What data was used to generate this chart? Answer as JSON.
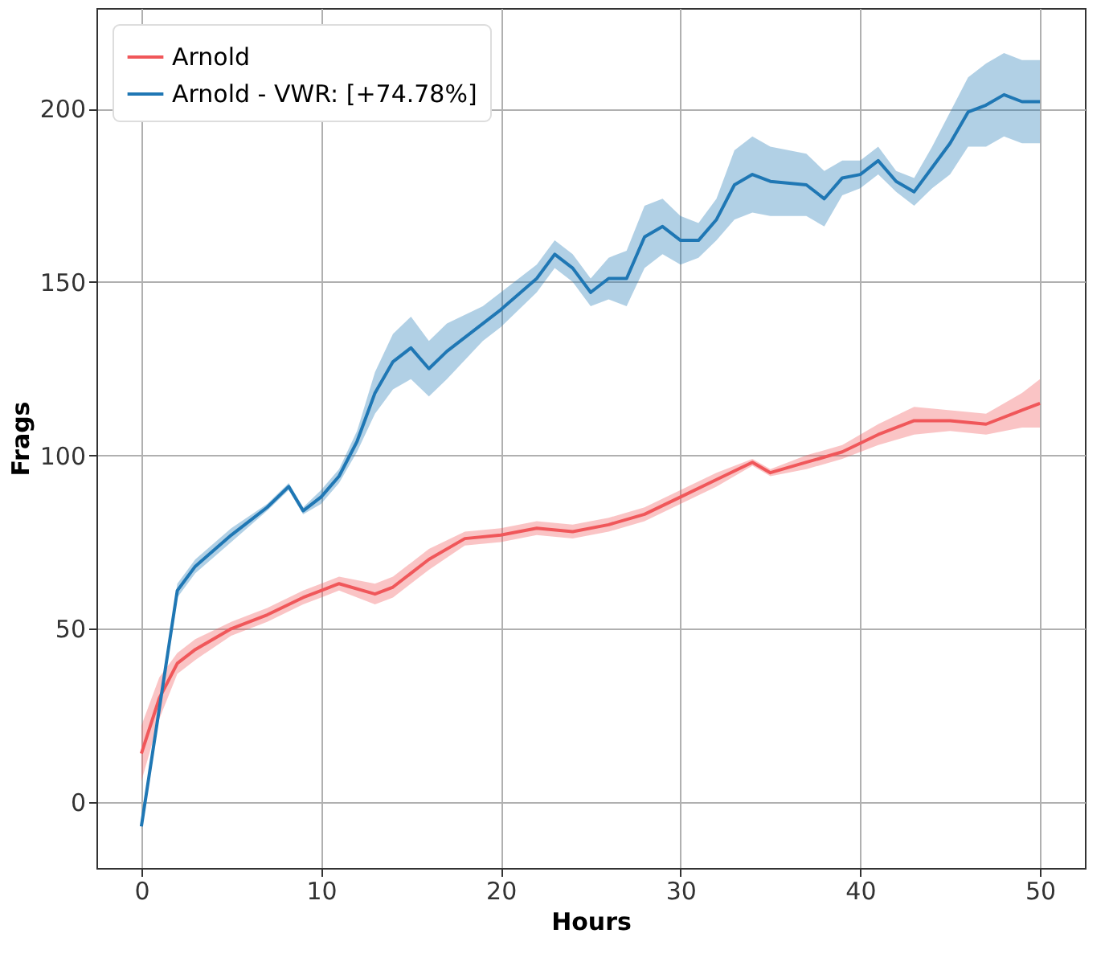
{
  "chart_data": {
    "type": "line",
    "xlabel": "Hours",
    "ylabel": "Frags",
    "xlim": [
      -2.5,
      52.5
    ],
    "ylim": [
      -19,
      229
    ],
    "xticks": [
      0,
      10,
      20,
      30,
      40,
      50
    ],
    "yticks": [
      0,
      50,
      100,
      150,
      200
    ],
    "grid": true,
    "legend": "top left",
    "line_style": "solid",
    "series": [
      {
        "name": "Arnold",
        "color": "#f0575a",
        "x": [
          0,
          1,
          2,
          3,
          5,
          7,
          9,
          10,
          11,
          13,
          14,
          16,
          18,
          20,
          22,
          24,
          26,
          28,
          30,
          32,
          34,
          35,
          37,
          39,
          41,
          43,
          45,
          47,
          49,
          50
        ],
        "values": [
          14,
          30,
          40,
          44,
          50,
          54,
          59,
          61,
          63,
          60,
          62,
          70,
          76,
          77,
          79,
          78,
          80,
          83,
          88,
          93,
          98,
          95,
          98,
          101,
          106,
          110,
          110,
          109,
          113,
          115
        ],
        "lower": [
          6,
          24,
          37,
          41,
          48,
          52,
          57,
          59,
          61,
          57,
          59,
          67,
          74,
          75,
          77,
          76,
          78,
          81,
          86,
          91,
          97,
          94,
          96,
          99,
          103,
          106,
          107,
          106,
          108,
          108
        ],
        "upper": [
          22,
          36,
          43,
          47,
          52,
          56,
          61,
          63,
          65,
          63,
          65,
          73,
          78,
          79,
          81,
          80,
          82,
          85,
          90,
          95,
          99,
          96,
          100,
          103,
          109,
          114,
          113,
          112,
          118,
          122
        ]
      },
      {
        "name": "Arnold - VWR: [+74.78%]",
        "color": "#1f77b4",
        "x": [
          0,
          2,
          3,
          5,
          7,
          8.2,
          9,
          10,
          11,
          12,
          13,
          14,
          15,
          16,
          17,
          19,
          20,
          22,
          23,
          24,
          25,
          26,
          27,
          28,
          29,
          30,
          31,
          32,
          33,
          34,
          35,
          37,
          38,
          39,
          40,
          41,
          42,
          43,
          44,
          45,
          46,
          47,
          48,
          49,
          50
        ],
        "values": [
          -7,
          61,
          68,
          77,
          85,
          91,
          84,
          88,
          94,
          104,
          118,
          127,
          131,
          125,
          130,
          138,
          142,
          151,
          158,
          154,
          147,
          151,
          151,
          163,
          166,
          162,
          162,
          168,
          178,
          181,
          179,
          178,
          174,
          180,
          181,
          185,
          179,
          176,
          183,
          190,
          199,
          201,
          204,
          202,
          202
        ],
        "lower": [
          -8,
          59,
          66,
          75,
          84,
          90,
          83,
          86,
          92,
          101,
          112,
          119,
          122,
          117,
          122,
          133,
          137,
          147,
          154,
          150,
          143,
          145,
          143,
          154,
          158,
          155,
          157,
          162,
          168,
          170,
          169,
          169,
          166,
          175,
          177,
          181,
          176,
          172,
          177,
          181,
          189,
          189,
          192,
          190,
          190
        ],
        "upper": [
          -6,
          63,
          70,
          79,
          86,
          92,
          85,
          90,
          96,
          107,
          124,
          135,
          140,
          133,
          138,
          143,
          147,
          155,
          162,
          158,
          151,
          157,
          159,
          172,
          174,
          169,
          167,
          174,
          188,
          192,
          189,
          187,
          182,
          185,
          185,
          189,
          182,
          180,
          189,
          199,
          209,
          213,
          216,
          214,
          214
        ]
      }
    ]
  }
}
